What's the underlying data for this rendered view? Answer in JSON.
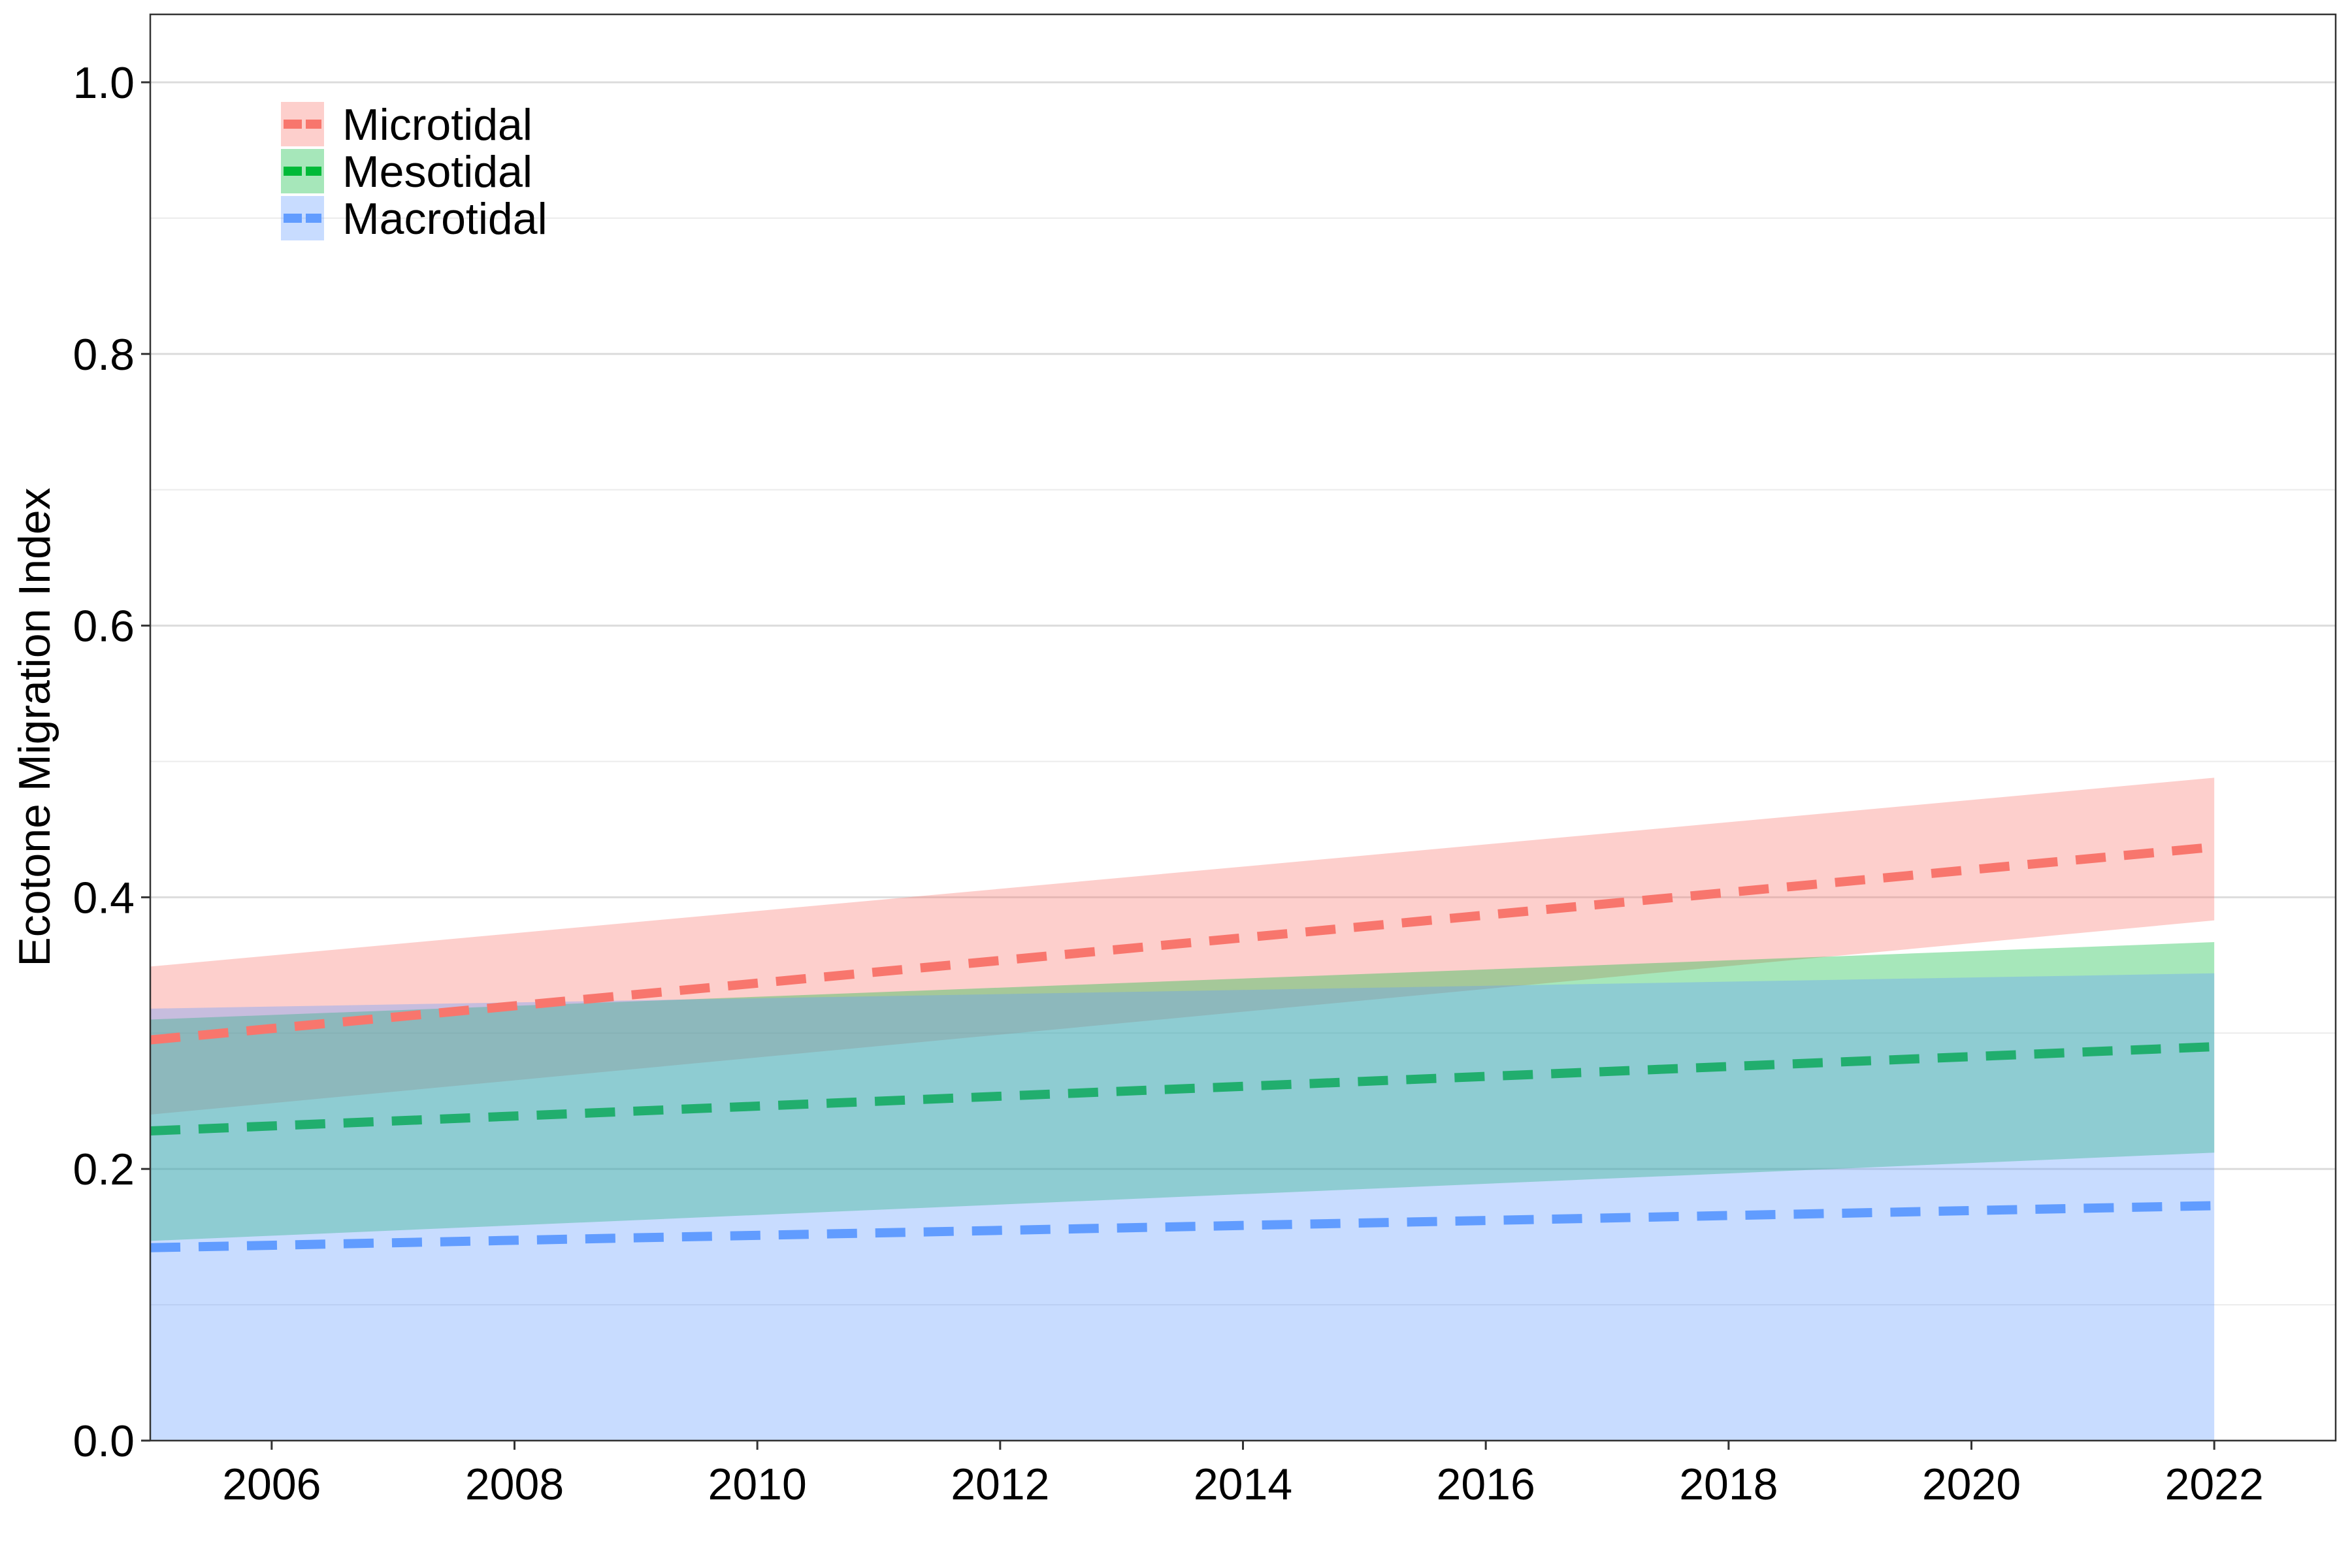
{
  "chart_data": {
    "type": "line",
    "title": "",
    "xlabel": "",
    "ylabel": "Ecotone Migration Index",
    "xlim": [
      2005,
      2023
    ],
    "ylim": [
      0.0,
      1.05
    ],
    "x_ticks": [
      2006,
      2008,
      2010,
      2012,
      2014,
      2016,
      2018,
      2020,
      2022
    ],
    "x_tick_labels": [
      "2006",
      "2008",
      "2010",
      "2012",
      "2014",
      "2016",
      "2018",
      "2020",
      "2022"
    ],
    "y_ticks": [
      0.0,
      0.2,
      0.4,
      0.6,
      0.8,
      1.0
    ],
    "y_tick_labels": [
      "0.0",
      "0.2",
      "0.4",
      "0.6",
      "0.8",
      "1.0"
    ],
    "y_minor_grid": [
      0.1,
      0.3,
      0.5,
      0.7,
      0.9
    ],
    "grid": true,
    "legend_position": "top-left",
    "series": [
      {
        "name": "Microtidal",
        "color": "#F8766D",
        "line_style": "dashed",
        "x": [
          2005,
          2022
        ],
        "fit": [
          0.295,
          0.437
        ],
        "ci_low": [
          0.24,
          0.383
        ],
        "ci_high": [
          0.349,
          0.488
        ]
      },
      {
        "name": "Mesotidal",
        "color": "#00BA38",
        "line_color": "#21AE6E",
        "line_style": "dashed",
        "x": [
          2005,
          2022
        ],
        "fit": [
          0.228,
          0.29
        ],
        "ci_low": [
          0.147,
          0.212
        ],
        "ci_high": [
          0.31,
          0.367
        ]
      },
      {
        "name": "Macrotidal",
        "color": "#619CFF",
        "line_style": "dashed",
        "x": [
          2005,
          2022
        ],
        "fit": [
          0.142,
          0.173
        ],
        "ci_low": [
          0.0,
          0.0
        ],
        "ci_high": [
          0.318,
          0.344
        ]
      }
    ]
  }
}
